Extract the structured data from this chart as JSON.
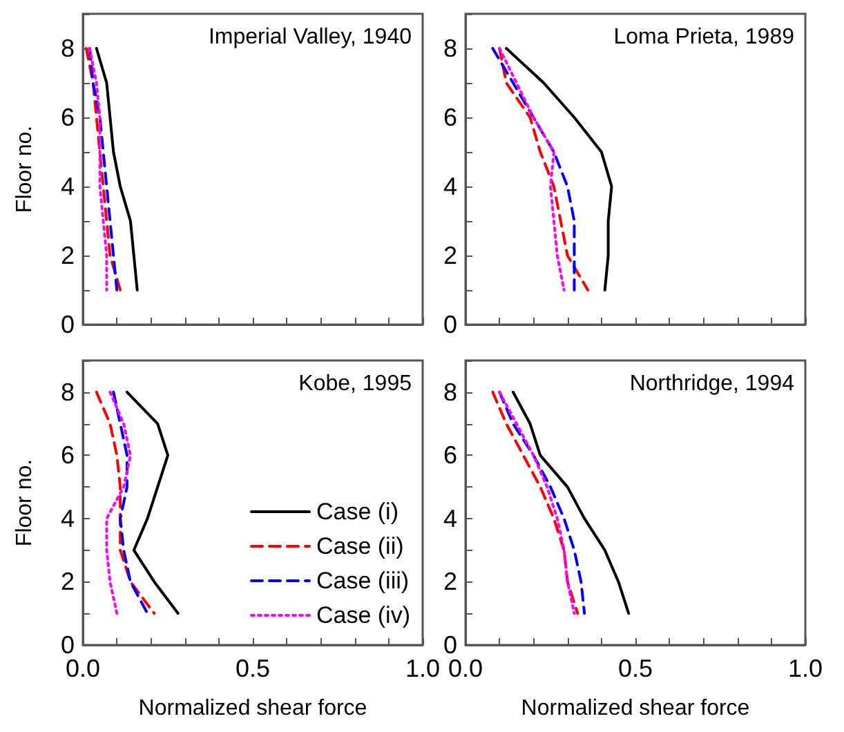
{
  "chart_data": [
    {
      "type": "line",
      "title": "Imperial Valley, 1940",
      "ylabel": "Floor no.",
      "tick_labels": "y",
      "xlim": [
        0,
        1
      ],
      "ylim": [
        0,
        9
      ],
      "xticks": [
        0,
        0.1,
        0.2,
        0.3,
        0.4,
        0.5,
        0.6,
        0.7,
        0.8,
        0.9,
        1
      ],
      "yticks": [
        0,
        {
          "value": 1,
          "label": null
        },
        2,
        {
          "value": 3,
          "label": null
        },
        4,
        {
          "value": 5,
          "label": null
        },
        6,
        {
          "value": 7,
          "label": null
        },
        8,
        {
          "value": 9,
          "label": null
        }
      ],
      "grid": false,
      "legend": false,
      "series": [
        {
          "color": "#000000",
          "line_style": "solid",
          "x": [
            0.04,
            0.07,
            0.08,
            0.09,
            0.11,
            0.14,
            0.15,
            0.16
          ],
          "values": [
            8,
            7,
            6,
            5,
            4,
            3,
            2,
            1
          ]
        },
        {
          "color": "#ff0000",
          "line_style": "dashed",
          "x": [
            0.01,
            0.03,
            0.04,
            0.05,
            0.06,
            0.07,
            0.08,
            0.11
          ],
          "values": [
            8,
            7,
            6,
            5,
            4,
            3,
            2,
            1
          ]
        },
        {
          "color": "#0000ff",
          "line_style": "dashed",
          "x": [
            0.02,
            0.03,
            0.05,
            0.06,
            0.07,
            0.08,
            0.09,
            0.1
          ],
          "values": [
            8,
            7,
            6,
            5,
            4,
            3,
            2,
            1
          ]
        },
        {
          "color": "#ff00ff",
          "line_style": "dotted",
          "x": [
            0.02,
            0.04,
            0.05,
            0.05,
            0.05,
            0.06,
            0.07,
            0.07
          ],
          "values": [
            8,
            7,
            6,
            5,
            4,
            3,
            2,
            1
          ]
        }
      ]
    },
    {
      "type": "line",
      "title": "Loma Prieta, 1989",
      "tick_labels": "y",
      "xlim": [
        0,
        1
      ],
      "ylim": [
        0,
        9
      ],
      "xticks": [
        0,
        0.1,
        0.2,
        0.3,
        0.4,
        0.5,
        0.6,
        0.7,
        0.8,
        0.9,
        1
      ],
      "yticks": [
        0,
        {
          "value": 1,
          "label": null
        },
        2,
        {
          "value": 3,
          "label": null
        },
        4,
        {
          "value": 5,
          "label": null
        },
        6,
        {
          "value": 7,
          "label": null
        },
        8,
        {
          "value": 9,
          "label": null
        }
      ],
      "grid": false,
      "legend": false,
      "series": [
        {
          "color": "#000000",
          "line_style": "solid",
          "x": [
            0.12,
            0.23,
            0.32,
            0.4,
            0.43,
            0.42,
            0.42,
            0.41
          ],
          "values": [
            8,
            7,
            6,
            5,
            4,
            3,
            2,
            1
          ]
        },
        {
          "color": "#ff0000",
          "line_style": "dashed",
          "x": [
            0.1,
            0.12,
            0.19,
            0.22,
            0.26,
            0.28,
            0.3,
            0.36
          ],
          "values": [
            8,
            7,
            6,
            5,
            4,
            3,
            2,
            1
          ]
        },
        {
          "color": "#0000ff",
          "line_style": "dashed",
          "x": [
            0.08,
            0.14,
            0.2,
            0.26,
            0.3,
            0.32,
            0.32,
            0.32
          ],
          "values": [
            8,
            7,
            6,
            5,
            4,
            3,
            2,
            1
          ]
        },
        {
          "color": "#ff00ff",
          "line_style": "dotted",
          "x": [
            0.1,
            0.15,
            0.2,
            0.26,
            0.25,
            0.26,
            0.27,
            0.29
          ],
          "values": [
            8,
            7,
            6,
            5,
            4,
            3,
            2,
            1
          ]
        }
      ]
    },
    {
      "type": "line",
      "title": "Kobe, 1995",
      "xlabel": "Normalized shear force",
      "ylabel": "Floor no.",
      "xlim": [
        0,
        1
      ],
      "ylim": [
        0,
        9
      ],
      "xticks": [
        {
          "value": 0,
          "label": "0.0"
        },
        {
          "value": 0.1,
          "label": null
        },
        {
          "value": 0.2,
          "label": null
        },
        {
          "value": 0.3,
          "label": null
        },
        {
          "value": 0.4,
          "label": null
        },
        {
          "value": 0.5,
          "label": "0.5"
        },
        {
          "value": 0.6,
          "label": null
        },
        {
          "value": 0.7,
          "label": null
        },
        {
          "value": 0.8,
          "label": null
        },
        {
          "value": 0.9,
          "label": null
        },
        {
          "value": 1,
          "label": "1.0"
        }
      ],
      "yticks": [
        0,
        {
          "value": 1,
          "label": null
        },
        2,
        {
          "value": 3,
          "label": null
        },
        4,
        {
          "value": 5,
          "label": null
        },
        6,
        {
          "value": 7,
          "label": null
        },
        8,
        {
          "value": 9,
          "label": null
        }
      ],
      "grid": false,
      "legend": "bottom right",
      "series": [
        {
          "name": "Case (i)",
          "color": "#000000",
          "line_style": "solid",
          "x": [
            0.13,
            0.22,
            0.25,
            0.22,
            0.19,
            0.15,
            0.21,
            0.28
          ],
          "values": [
            8,
            7,
            6,
            5,
            4,
            3,
            2,
            1
          ]
        },
        {
          "name": "Case (ii)",
          "color": "#ff0000",
          "line_style": "dashed",
          "x": [
            0.04,
            0.08,
            0.1,
            0.11,
            0.11,
            0.11,
            0.14,
            0.21
          ],
          "values": [
            8,
            7,
            6,
            5,
            4,
            3,
            2,
            1
          ]
        },
        {
          "name": "Case (iii)",
          "color": "#0000ff",
          "line_style": "dashed",
          "x": [
            0.09,
            0.11,
            0.13,
            0.13,
            0.11,
            0.12,
            0.14,
            0.19
          ],
          "values": [
            8,
            7,
            6,
            5,
            4,
            3,
            2,
            1
          ]
        },
        {
          "name": "Case (iv)",
          "color": "#ff00ff",
          "line_style": "dotted",
          "x": [
            0.08,
            0.12,
            0.14,
            0.12,
            0.07,
            0.07,
            0.08,
            0.1
          ],
          "values": [
            8,
            7,
            6,
            5,
            4,
            3,
            2,
            1
          ]
        }
      ]
    },
    {
      "type": "line",
      "title": "Northridge, 1994",
      "xlabel": "Normalized shear force",
      "xlim": [
        0,
        1
      ],
      "ylim": [
        0,
        9
      ],
      "xticks": [
        {
          "value": 0,
          "label": "0.0"
        },
        {
          "value": 0.1,
          "label": null
        },
        {
          "value": 0.2,
          "label": null
        },
        {
          "value": 0.3,
          "label": null
        },
        {
          "value": 0.4,
          "label": null
        },
        {
          "value": 0.5,
          "label": "0.5"
        },
        {
          "value": 0.6,
          "label": null
        },
        {
          "value": 0.7,
          "label": null
        },
        {
          "value": 0.8,
          "label": null
        },
        {
          "value": 0.9,
          "label": null
        },
        {
          "value": 1,
          "label": "1.0"
        }
      ],
      "yticks": [
        0,
        {
          "value": 1,
          "label": null
        },
        2,
        {
          "value": 3,
          "label": null
        },
        4,
        {
          "value": 5,
          "label": null
        },
        6,
        {
          "value": 7,
          "label": null
        },
        8,
        {
          "value": 9,
          "label": null
        }
      ],
      "grid": false,
      "legend": false,
      "series": [
        {
          "color": "#000000",
          "line_style": "solid",
          "x": [
            0.14,
            0.19,
            0.22,
            0.3,
            0.35,
            0.41,
            0.45,
            0.48
          ],
          "values": [
            8,
            7,
            6,
            5,
            4,
            3,
            2,
            1
          ]
        },
        {
          "color": "#ff0000",
          "line_style": "dashed",
          "x": [
            0.08,
            0.12,
            0.17,
            0.22,
            0.26,
            0.29,
            0.3,
            0.33
          ],
          "values": [
            8,
            7,
            6,
            5,
            4,
            3,
            2,
            1
          ]
        },
        {
          "color": "#0000ff",
          "line_style": "dashed",
          "x": [
            0.1,
            0.14,
            0.2,
            0.25,
            0.29,
            0.32,
            0.34,
            0.35
          ],
          "values": [
            8,
            7,
            6,
            5,
            4,
            3,
            2,
            1
          ]
        },
        {
          "color": "#ff00ff",
          "line_style": "dotted",
          "x": [
            0.1,
            0.15,
            0.2,
            0.24,
            0.27,
            0.29,
            0.3,
            0.32
          ],
          "values": [
            8,
            7,
            6,
            5,
            4,
            3,
            2,
            1
          ]
        }
      ]
    }
  ]
}
